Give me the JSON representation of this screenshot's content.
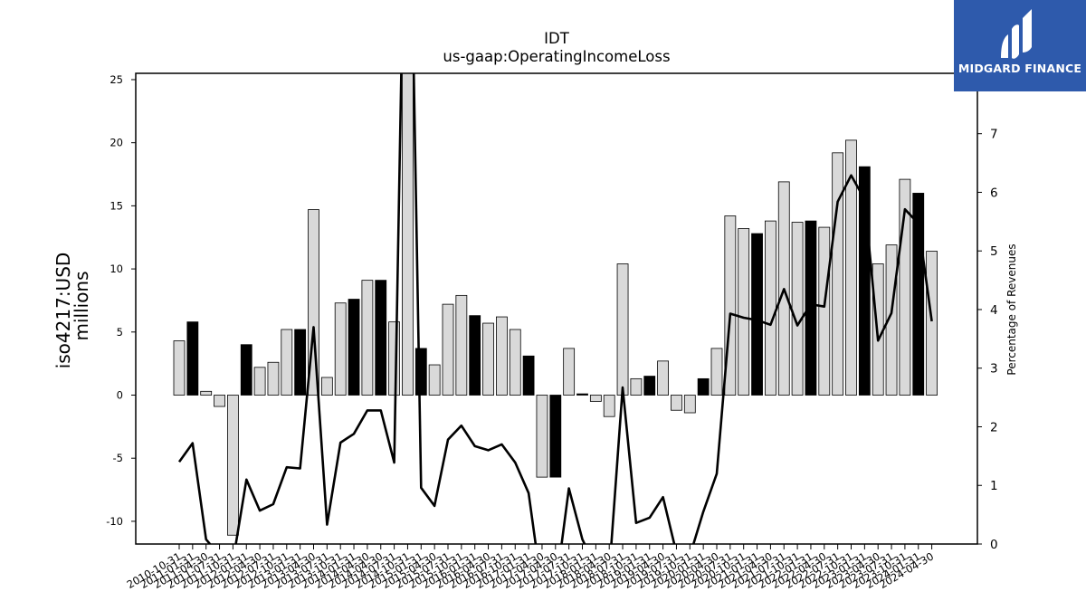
{
  "brand": {
    "name": "MIDGARD FINANCE",
    "logo_icon": "midgard-logo-icon",
    "background": "#2e5aac"
  },
  "chart_data": {
    "type": "bar",
    "title": "IDT",
    "subtitle": "us-gaap:OperatingIncomeLoss",
    "ylabel": "iso4217:USD",
    "ylabel_unit": "millions",
    "y2label": "Percentage of Revenues",
    "ylim": [
      -11.8,
      25.5
    ],
    "y2lim": [
      0,
      8.03
    ],
    "yticks": [
      -10,
      -5,
      0,
      5,
      10,
      15,
      20,
      25
    ],
    "y2ticks": [
      0,
      1,
      2,
      3,
      4,
      5,
      6,
      7
    ],
    "categories": [
      "2010-10-31",
      "2011-01-31",
      "2011-04-30",
      "2011-07-31",
      "2011-10-31",
      "2012-01-31",
      "2012-04-30",
      "2012-07-31",
      "2012-10-31",
      "2013-01-31",
      "2013-04-30",
      "2013-07-31",
      "2013-10-31",
      "2014-01-31",
      "2014-04-30",
      "2014-04-30",
      "2014-07-31",
      "2014-10-31",
      "2015-01-31",
      "2015-04-30",
      "2015-07-31",
      "2015-10-31",
      "2016-01-31",
      "2016-04-30",
      "2016-07-31",
      "2016-10-31",
      "2017-01-31",
      "2017-04-30",
      "2017-04-30",
      "2017-07-31",
      "2017-10-31",
      "2018-01-31",
      "2018-04-30",
      "2018-07-31",
      "2018-10-31",
      "2019-01-31",
      "2019-04-30",
      "2019-07-31",
      "2019-10-31",
      "2020-01-31",
      "2020-04-30",
      "2020-07-31",
      "2020-10-31",
      "2021-01-31",
      "2021-04-30",
      "2021-07-31",
      "2021-10-31",
      "2022-01-31",
      "2022-04-30",
      "2022-07-31",
      "2022-10-31",
      "2023-01-31",
      "2023-04-30",
      "2023-07-31",
      "2023-10-31",
      "2024-01-31",
      "2024-04-30"
    ],
    "tick_labels": [
      "2010-10-31",
      "2011-01-31",
      "2011-04-30",
      "2011-07-31",
      "2011-10-31",
      "2012-01-31",
      "2012-04-30",
      "2012-07-31",
      "2012-10-31",
      "2013-01-31",
      "2013-04-30",
      "2013-07-31",
      "2013-10-31",
      "2014-01-31",
      "2014-04-30",
      "2014-04-30",
      "2014-07-31",
      "2014-10-31",
      "2015-01-31",
      "2015-04-30",
      "2015-07-31",
      "2015-10-31",
      "2016-01-31",
      "2016-04-30",
      "2016-07-31",
      "2016-10-31",
      "2017-01-31",
      "2017-04-30",
      "2017-04-30",
      "2017-07-31",
      "2017-10-31",
      "2018-01-31",
      "2018-04-30",
      "2018-07-31",
      "2018-10-31",
      "2019-01-31",
      "2019-04-30",
      "2019-07-31",
      "2019-10-31",
      "2020-01-31",
      "2020-04-30",
      "2020-07-31",
      "2020-10-31",
      "2021-01-31",
      "2021-04-30",
      "2021-07-31",
      "2021-10-31",
      "2022-01-31",
      "2022-04-30",
      "2022-07-31",
      "2022-10-31",
      "2023-01-31",
      "2023-04-30",
      "2023-07-31",
      "2023-10-31",
      "2024-01-31",
      "2024-04-30"
    ],
    "values": [
      4.3,
      5.8,
      0.3,
      -0.9,
      -11.1,
      4.0,
      2.2,
      2.6,
      5.2,
      5.2,
      14.7,
      1.4,
      7.3,
      7.6,
      9.1,
      9.1,
      5.8,
      25.5,
      3.7,
      2.4,
      7.2,
      7.9,
      6.3,
      5.7,
      6.2,
      5.2,
      3.1,
      -6.5,
      -6.5,
      3.7,
      0.1,
      -0.5,
      -1.7,
      10.4,
      1.3,
      1.5,
      2.7,
      -1.2,
      -1.4,
      1.3,
      3.7,
      14.2,
      13.2,
      12.8,
      13.8,
      16.9,
      13.7,
      13.8,
      13.3,
      19.2,
      20.2,
      18.1,
      10.4,
      11.9,
      17.1,
      16.0,
      11.4
    ],
    "bar_colors": [
      "light",
      "dark",
      "light",
      "light",
      "light",
      "dark",
      "light",
      "light",
      "light",
      "dark",
      "light",
      "light",
      "light",
      "dark",
      "light",
      "dark",
      "light",
      "light",
      "dark",
      "light",
      "light",
      "light",
      "dark",
      "light",
      "light",
      "light",
      "dark",
      "light",
      "dark",
      "light",
      "dark",
      "light",
      "light",
      "light",
      "light",
      "dark",
      "light",
      "light",
      "light",
      "dark",
      "light",
      "light",
      "light",
      "dark",
      "light",
      "light",
      "light",
      "dark",
      "light",
      "light",
      "light",
      "dark",
      "light",
      "light",
      "light",
      "dark",
      "light"
    ],
    "series": [
      {
        "name": "",
        "values": [
          1.4,
          1.72,
          0.08,
          -0.2,
          -0.3,
          1.1,
          0.57,
          0.68,
          1.31,
          1.29,
          3.7,
          0.33,
          1.73,
          1.88,
          2.28,
          2.28,
          1.39,
          14.0,
          0.96,
          0.65,
          1.78,
          2.02,
          1.67,
          1.6,
          1.7,
          1.39,
          0.87,
          -0.8,
          -0.8,
          0.95,
          0.08,
          -0.4,
          -0.5,
          2.67,
          0.36,
          0.45,
          0.8,
          -0.15,
          -0.2,
          0.55,
          1.2,
          3.93,
          3.86,
          3.82,
          3.74,
          4.35,
          3.73,
          4.09,
          4.05,
          5.84,
          6.29,
          5.88,
          3.47,
          3.94,
          5.71,
          5.47,
          3.8
        ]
      }
    ],
    "colors": {
      "light_bar": "#d9d9d9",
      "dark_bar": "#000000",
      "bar_edge": "#000000",
      "line": "#000000"
    },
    "grid": false,
    "legend": "none"
  }
}
